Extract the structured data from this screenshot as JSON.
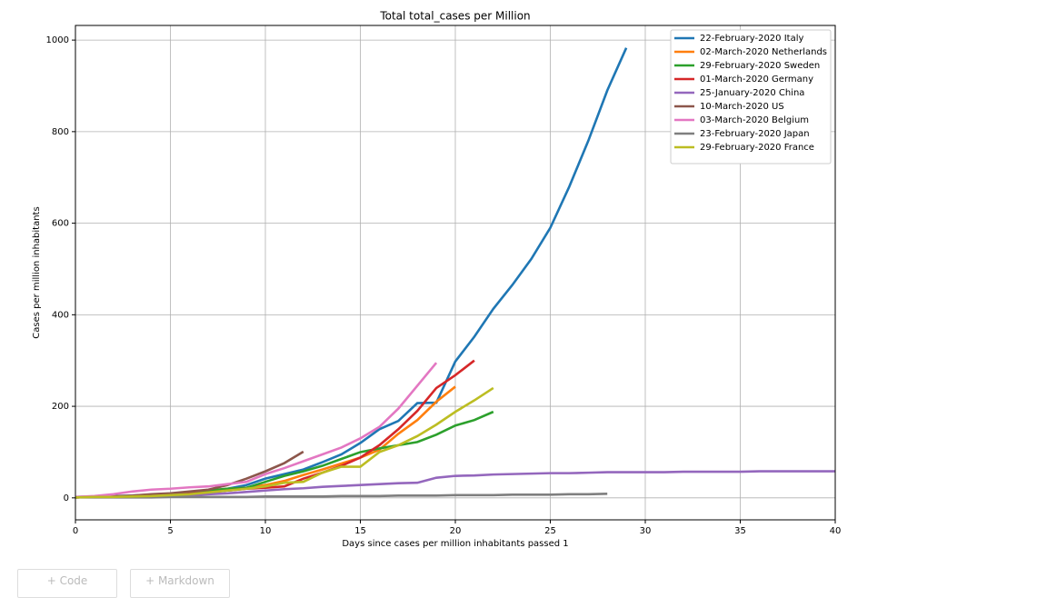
{
  "chart_data": {
    "type": "line",
    "title": "Total total_cases per Million",
    "xlabel": "Days since cases per million inhabitants passed 1",
    "ylabel": "Cases per million inhabitants",
    "xlim": [
      0,
      40
    ],
    "ylim": [
      -48,
      1032
    ],
    "xticks": [
      0,
      5,
      10,
      15,
      20,
      25,
      30,
      35,
      40
    ],
    "yticks": [
      0,
      200,
      400,
      600,
      800,
      1000
    ],
    "grid": true,
    "legend": "upper right",
    "series": [
      {
        "name": "22-February-2020 Italy",
        "color": "#1f77b4",
        "x": [
          0,
          1,
          2,
          3,
          4,
          5,
          6,
          7,
          8,
          9,
          10,
          11,
          12,
          13,
          14,
          15,
          16,
          17,
          18,
          19,
          20,
          21,
          22,
          23,
          24,
          25,
          26,
          27,
          28,
          29
        ],
        "values": [
          2,
          3,
          4,
          5,
          7,
          9,
          12,
          16,
          20,
          28,
          42,
          52,
          62,
          78,
          95,
          120,
          150,
          168,
          207,
          208,
          298,
          352,
          413,
          465,
          522,
          590,
          680,
          780,
          890,
          983
        ]
      },
      {
        "name": "02-March-2020 Netherlands",
        "color": "#ff7f0e",
        "x": [
          0,
          1,
          2,
          3,
          4,
          5,
          6,
          7,
          8,
          9,
          10,
          11,
          12,
          13,
          14,
          15,
          16,
          17,
          18,
          19,
          20
        ],
        "values": [
          1,
          2,
          3,
          4,
          6,
          8,
          12,
          16,
          20,
          22,
          28,
          37,
          50,
          62,
          75,
          88,
          105,
          140,
          170,
          210,
          243
        ]
      },
      {
        "name": "29-February-2020 Sweden",
        "color": "#2ca02c",
        "x": [
          0,
          1,
          2,
          3,
          4,
          5,
          6,
          7,
          8,
          9,
          10,
          11,
          12,
          13,
          14,
          15,
          16,
          17,
          18,
          19,
          20,
          21,
          22
        ],
        "values": [
          1,
          2,
          3,
          4,
          6,
          8,
          12,
          16,
          20,
          22,
          35,
          48,
          58,
          70,
          85,
          100,
          108,
          115,
          122,
          138,
          158,
          170,
          188
        ]
      },
      {
        "name": "01-March-2020 Germany",
        "color": "#d62728",
        "x": [
          0,
          1,
          2,
          3,
          4,
          5,
          6,
          7,
          8,
          9,
          10,
          11,
          12,
          13,
          14,
          15,
          16,
          17,
          18,
          19,
          20,
          21
        ],
        "values": [
          1,
          2,
          3,
          4,
          5,
          7,
          9,
          12,
          16,
          20,
          22,
          25,
          42,
          55,
          70,
          88,
          115,
          150,
          190,
          240,
          268,
          300
        ]
      },
      {
        "name": "25-January-2020 China",
        "color": "#9467bd",
        "x": [
          0,
          1,
          2,
          3,
          4,
          5,
          6,
          7,
          8,
          9,
          10,
          11,
          12,
          13,
          14,
          15,
          16,
          17,
          18,
          19,
          20,
          21,
          22,
          23,
          24,
          25,
          26,
          27,
          28,
          29,
          30,
          31,
          32,
          33,
          34,
          35,
          36,
          37,
          38,
          39,
          40
        ],
        "values": [
          1,
          2,
          2,
          3,
          4,
          5,
          6,
          8,
          10,
          13,
          16,
          19,
          21,
          24,
          26,
          28,
          30,
          32,
          33,
          44,
          48,
          49,
          51,
          52,
          53,
          54,
          54,
          55,
          56,
          56,
          56,
          56,
          57,
          57,
          57,
          57,
          58,
          58,
          58,
          58,
          58
        ]
      },
      {
        "name": "10-March-2020 US",
        "color": "#8c564b",
        "x": [
          0,
          1,
          2,
          3,
          4,
          5,
          6,
          7,
          8,
          9,
          10,
          11,
          12
        ],
        "values": [
          1,
          2,
          3,
          5,
          8,
          10,
          14,
          18,
          28,
          42,
          58,
          76,
          101
        ]
      },
      {
        "name": "03-March-2020 Belgium",
        "color": "#e377c2",
        "x": [
          0,
          1,
          2,
          3,
          4,
          5,
          6,
          7,
          8,
          9,
          10,
          11,
          12,
          13,
          14,
          15,
          16,
          17,
          18,
          19
        ],
        "values": [
          2,
          4,
          8,
          14,
          18,
          20,
          23,
          25,
          30,
          35,
          52,
          65,
          80,
          95,
          110,
          130,
          155,
          195,
          245,
          295
        ]
      },
      {
        "name": "23-February-2020 Japan",
        "color": "#7f7f7f",
        "x": [
          0,
          1,
          2,
          3,
          4,
          5,
          6,
          7,
          8,
          9,
          10,
          11,
          12,
          13,
          14,
          15,
          16,
          17,
          18,
          19,
          20,
          21,
          22,
          23,
          24,
          25,
          26,
          27,
          28
        ],
        "values": [
          1,
          1,
          1,
          1,
          1,
          2,
          2,
          2,
          2,
          2,
          3,
          3,
          3,
          3,
          4,
          4,
          4,
          5,
          5,
          5,
          6,
          6,
          6,
          7,
          7,
          7,
          8,
          8,
          9
        ]
      },
      {
        "name": "29-February-2020 France",
        "color": "#bcbd22",
        "x": [
          0,
          1,
          2,
          3,
          4,
          5,
          6,
          7,
          8,
          9,
          10,
          11,
          12,
          13,
          14,
          15,
          16,
          17,
          18,
          19,
          20,
          21,
          22
        ],
        "values": [
          1,
          2,
          2,
          3,
          4,
          6,
          8,
          12,
          16,
          20,
          25,
          33,
          35,
          55,
          68,
          68,
          100,
          115,
          135,
          160,
          188,
          213,
          240
        ]
      }
    ]
  },
  "buttons": [
    "+ Code",
    "+ Markdown"
  ]
}
